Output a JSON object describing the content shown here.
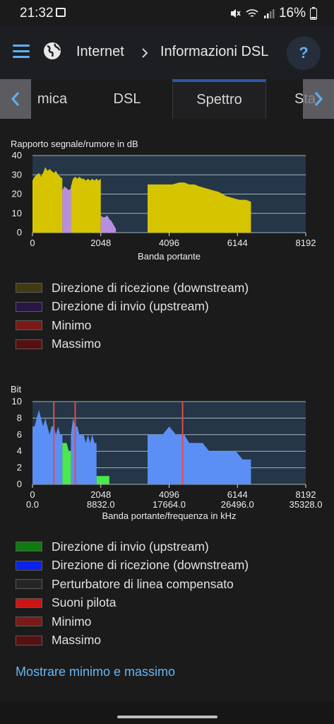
{
  "status_bar": {
    "time": "21:32",
    "battery": "16%"
  },
  "header": {
    "crumb_1": "Internet",
    "crumb_2": "Informazioni DSL",
    "help": "?"
  },
  "tabs": [
    {
      "label": "mica",
      "active": false
    },
    {
      "label": "DSL",
      "active": false
    },
    {
      "label": "Spettro",
      "active": true
    },
    {
      "label": "Sta",
      "active": false
    }
  ],
  "chart_data": [
    {
      "type": "area",
      "title": "Rapporto segnale/rumore in dB",
      "xlabel": "Banda portante",
      "ylabel": "",
      "xlim": [
        0,
        8192
      ],
      "ylim": [
        0,
        40
      ],
      "x_ticks": [
        "0",
        "2048",
        "4096",
        "6144",
        "8192"
      ],
      "y_ticks": [
        "0",
        "10",
        "20",
        "30",
        "40"
      ],
      "grid": true,
      "series": [
        {
          "name": "Direzione di ricezione (downstream)",
          "color": "#d7c400",
          "segments": [
            [
              [
                0,
                27
              ],
              [
                64,
                29
              ],
              [
                128,
                30
              ],
              [
                192,
                31
              ],
              [
                256,
                29
              ],
              [
                320,
                31
              ],
              [
                384,
                34
              ],
              [
                448,
                32
              ],
              [
                512,
                33
              ],
              [
                576,
                32
              ],
              [
                640,
                31
              ],
              [
                704,
                32
              ],
              [
                768,
                30
              ],
              [
                832,
                29
              ],
              [
                896,
                28
              ]
            ],
            [
              [
                1152,
                24
              ],
              [
                1216,
                28
              ],
              [
                1280,
                29
              ],
              [
                1344,
                28
              ],
              [
                1408,
                29
              ],
              [
                1472,
                28
              ],
              [
                1536,
                28
              ],
              [
                1600,
                27
              ],
              [
                1664,
                28
              ],
              [
                1728,
                27
              ],
              [
                1792,
                28
              ],
              [
                1856,
                27
              ],
              [
                1920,
                28
              ],
              [
                1984,
                27
              ],
              [
                2048,
                28
              ]
            ],
            [
              [
                3450,
                25
              ],
              [
                3600,
                25
              ],
              [
                3800,
                25
              ],
              [
                4000,
                25
              ],
              [
                4200,
                25
              ],
              [
                4400,
                26
              ],
              [
                4550,
                26
              ],
              [
                4700,
                25
              ],
              [
                4850,
                25
              ],
              [
                5000,
                24
              ],
              [
                5200,
                23
              ],
              [
                5400,
                22
              ],
              [
                5600,
                21
              ],
              [
                5800,
                19
              ],
              [
                6000,
                18
              ],
              [
                6200,
                17
              ],
              [
                6400,
                17
              ],
              [
                6550,
                16
              ]
            ]
          ]
        },
        {
          "name": "Direzione di invio  (upstream)",
          "color": "#b88fe0",
          "segments": [
            [
              [
                896,
                22
              ],
              [
                960,
                24
              ],
              [
                1024,
                23
              ],
              [
                1088,
                22
              ],
              [
                1152,
                23
              ]
            ],
            [
              [
                2048,
                9
              ],
              [
                2112,
                8
              ],
              [
                2176,
                8
              ],
              [
                2240,
                9
              ],
              [
                2304,
                7
              ],
              [
                2368,
                6
              ],
              [
                2432,
                4
              ],
              [
                2500,
                2
              ]
            ]
          ]
        }
      ]
    },
    {
      "type": "area",
      "title": "Bit",
      "xlabel": "Banda portante/frequenza in kHz",
      "ylabel": "",
      "xlim": [
        0,
        8192
      ],
      "ylim": [
        0,
        10
      ],
      "x_ticks": [
        "0",
        "2048",
        "4096",
        "6144",
        "8192"
      ],
      "x_ticks_secondary": [
        "0.0",
        "8832.0",
        "17664.0",
        "26496.0",
        "35328.0"
      ],
      "y_ticks": [
        "0",
        "2",
        "4",
        "6",
        "8",
        "10"
      ],
      "grid": true,
      "pilot_tones": [
        640,
        1280,
        4500
      ],
      "series": [
        {
          "name": "Direzione di ricezione (downstream)",
          "color": "#5b8ff5",
          "segments": [
            [
              [
                0,
                7
              ],
              [
                64,
                7
              ],
              [
                128,
                8
              ],
              [
                192,
                9
              ],
              [
                256,
                8
              ],
              [
                320,
                7
              ],
              [
                384,
                8
              ],
              [
                448,
                7
              ],
              [
                512,
                6
              ],
              [
                576,
                7
              ],
              [
                640,
                7
              ],
              [
                704,
                6
              ],
              [
                768,
                7
              ],
              [
                832,
                6
              ],
              [
                896,
                6
              ]
            ],
            [
              [
                1152,
                6
              ],
              [
                1216,
                8
              ],
              [
                1280,
                7
              ],
              [
                1344,
                7
              ],
              [
                1408,
                6
              ],
              [
                1472,
                6
              ],
              [
                1536,
                6
              ],
              [
                1600,
                5
              ],
              [
                1664,
                6
              ],
              [
                1728,
                5
              ],
              [
                1792,
                6
              ],
              [
                1856,
                5
              ],
              [
                1920,
                5
              ]
            ],
            [
              [
                3450,
                6
              ],
              [
                3700,
                6
              ],
              [
                3900,
                6
              ],
              [
                4100,
                7
              ],
              [
                4300,
                6
              ],
              [
                4450,
                6
              ],
              [
                4550,
                6
              ],
              [
                4700,
                5
              ],
              [
                4900,
                5
              ],
              [
                5100,
                5
              ],
              [
                5300,
                4
              ],
              [
                5500,
                4
              ],
              [
                5700,
                4
              ],
              [
                5900,
                4
              ],
              [
                6100,
                4
              ],
              [
                6300,
                3
              ],
              [
                6550,
                3
              ]
            ]
          ]
        },
        {
          "name": "Direzione di invio  (upstream)",
          "color": "#4ce84c",
          "segments": [
            [
              [
                896,
                5
              ],
              [
                960,
                5
              ],
              [
                1024,
                5
              ],
              [
                1088,
                4
              ],
              [
                1152,
                4
              ]
            ],
            [
              [
                1920,
                1
              ],
              [
                2048,
                1
              ],
              [
                2112,
                1
              ],
              [
                2176,
                1
              ],
              [
                2240,
                1
              ],
              [
                2304,
                1
              ]
            ]
          ]
        }
      ]
    }
  ],
  "legend_1": [
    {
      "label": "Direzione di ricezione (downstream)",
      "color": "#413b12"
    },
    {
      "label": "Direzione di invio  (upstream)",
      "color": "#281644"
    },
    {
      "label": "Minimo",
      "color": "#7a1a16"
    },
    {
      "label": "Massimo",
      "color": "#571010"
    }
  ],
  "legend_2": [
    {
      "label": "Direzione di invio  (upstream)",
      "color": "#0f7b0f"
    },
    {
      "label": "Direzione di ricezione (downstream)",
      "color": "#0b22ea"
    },
    {
      "label": "Perturbatore di linea compensato",
      "color": "#252525"
    },
    {
      "label": "Suoni pilota",
      "color": "#cc1414"
    },
    {
      "label": "Minimo",
      "color": "#7a1a16"
    },
    {
      "label": "Massimo",
      "color": "#571010"
    }
  ],
  "link": "Mostrare minimo e massimo"
}
